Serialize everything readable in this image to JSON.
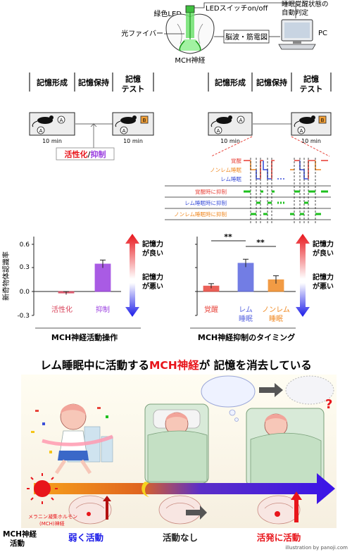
{
  "setup": {
    "green_led": "緑色LED",
    "led_switch": "LEDスイッチon/off",
    "sleep_judge_line1": "睡眠覚醒状態の",
    "sleep_judge_line2": "自動判定",
    "optic_fiber": "光ファイバー",
    "eeg_emg": "脳波・筋電図",
    "pc": "PC",
    "mch_neuron": "MCH神経"
  },
  "left_protocol": {
    "phase1": "記憶形成",
    "phase2": "記憶保持",
    "phase3_line1": "記憶",
    "phase3_line2": "テスト",
    "time1": "10 min",
    "time2": "10 min",
    "object_a": "A",
    "object_b": "B",
    "manipulation_activate": "活性化",
    "manipulation_slash": "/",
    "manipulation_inhibit": "抑制"
  },
  "right_protocol": {
    "phase1": "記憶形成",
    "phase2": "記憶保持",
    "phase3_line1": "記憶",
    "phase3_line2": "テスト",
    "time1": "10 min",
    "time2": "10 min",
    "object_a": "A",
    "object_b": "B",
    "states": [
      {
        "label": "覚醒",
        "color": "#e8453c"
      },
      {
        "label": "ノンレム睡眠",
        "color": "#f08a24"
      },
      {
        "label": "レム睡眠",
        "color": "#3b4fd8"
      }
    ],
    "conditions": [
      {
        "label": "覚醒時に抑制",
        "color": "#e8453c"
      },
      {
        "label": "レム睡眠時に抑制",
        "color": "#3b4fd8"
      },
      {
        "label": "ノンレム睡眠時に抑制",
        "color": "#f08a24"
      }
    ]
  },
  "chart_data": [
    {
      "type": "bar",
      "ylabel": "新奇物体認識率",
      "yticks": [
        "0.6",
        "0.3",
        "0.0",
        "-0.3"
      ],
      "ylim": [
        -0.3,
        0.6
      ],
      "categories": [
        "活性化",
        "抑制"
      ],
      "values": [
        -0.02,
        0.35
      ],
      "errors": [
        0.02,
        0.05
      ],
      "colors": [
        "#d9445b",
        "#9b3fe0"
      ],
      "xlabel": "MCH神経活動操作"
    },
    {
      "type": "bar",
      "ylim": [
        -0.3,
        0.6
      ],
      "categories": [
        "覚醒",
        "レム\n睡眠",
        "ノンレム\n睡眠"
      ],
      "values": [
        0.07,
        0.36,
        0.15
      ],
      "errors": [
        0.03,
        0.05,
        0.05
      ],
      "colors": [
        "#e8453c",
        "#5a67e0",
        "#f08a24"
      ],
      "xlabel": "MCH神経抑制のタイミング",
      "significance": [
        "**",
        "**"
      ]
    }
  ],
  "memory_arrows": {
    "good_line1": "記憶力",
    "good_line2": "が良い",
    "bad_line1": "記憶力",
    "bad_line2": "が悪い"
  },
  "headline": {
    "part1": "レム睡眠中に活動する",
    "part2": "MCH神経",
    "part3": "が 記憶を消去している"
  },
  "illustration": {
    "hormone_line1": "メラニン凝集ホルモン",
    "hormone_line2": "(MCH)神経",
    "mch_activity_line1": "MCH神経",
    "mch_activity_line2": "活動",
    "weak": "弱く活動",
    "none": "活動なし",
    "active": "活発に活動",
    "credit": "illustration by panoji.com"
  }
}
